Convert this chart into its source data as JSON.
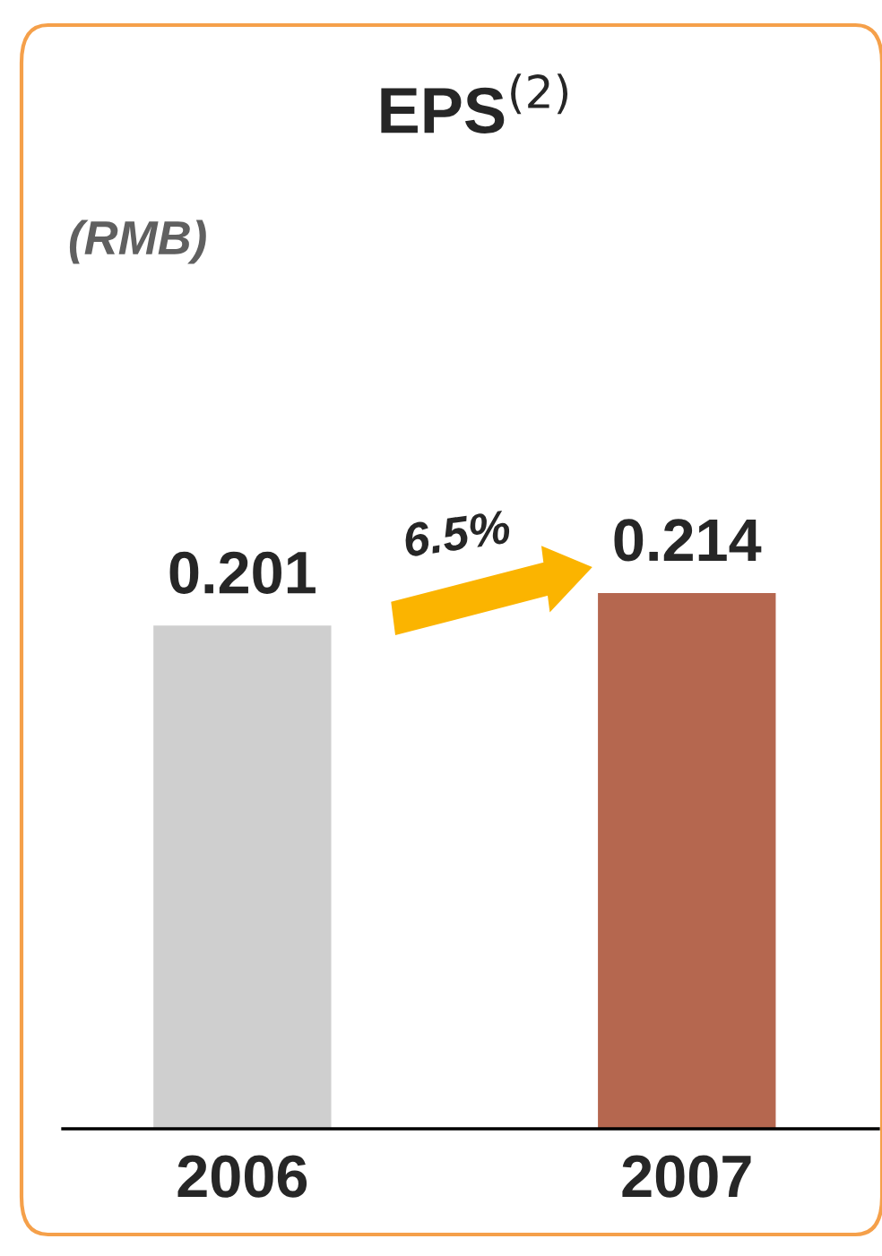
{
  "chart_data": {
    "type": "bar",
    "title": "EPS$^{(2)}$",
    "subtitle": "(RMB)",
    "categories": [
      "2006",
      "2007"
    ],
    "values": [
      0.201,
      0.214
    ],
    "colors": [
      "#cfcfcf",
      "#b5674f"
    ],
    "data_labels": true,
    "tick_labels": "x",
    "legend": false,
    "grid": false,
    "annotations": [
      "6.5%"
    ]
  }
}
